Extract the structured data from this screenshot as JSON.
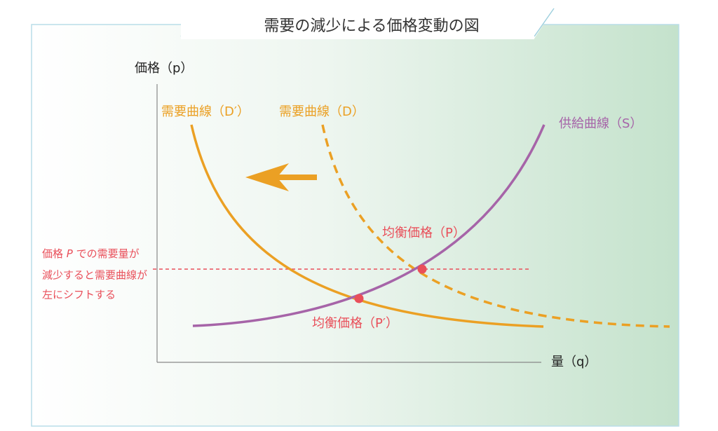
{
  "title": "需要の減少による価格変動の図",
  "axes": {
    "y_label": "価格（p）",
    "x_label": "量（q）"
  },
  "curves": {
    "demand_shifted": "需要曲線（D′）",
    "demand": "需要曲線（D）",
    "supply": "供給曲線（S）"
  },
  "equilibria": {
    "original": "均衡価格（P）",
    "shifted": "均衡価格（P′）"
  },
  "annotation": {
    "line1_before": "価格 ",
    "line1_italic": "P",
    "line1_after": " での需要量が",
    "line2": "減少すると需要曲線が",
    "line3": "左にシフトする"
  }
}
